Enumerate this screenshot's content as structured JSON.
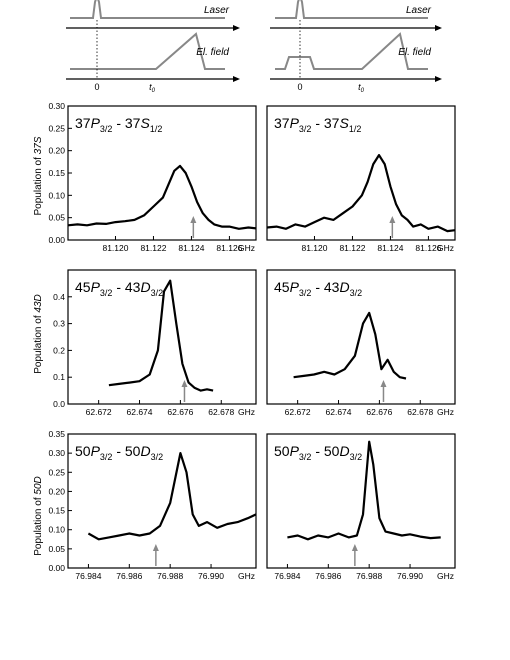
{
  "timing": {
    "left": {
      "laser_label": "Laser",
      "field_label": "El. field",
      "zero_label": "0",
      "t0_label": "t",
      "t0_sub": "0"
    },
    "right": {
      "laser_label": "Laser",
      "field_label": "El. field",
      "zero_label": "0",
      "t0_label": "t",
      "t0_sub": "0"
    }
  },
  "ghz_unit": "GHz",
  "rows": [
    {
      "ylabel_pre": "Population of ",
      "ylabel_state": "37S",
      "title": {
        "n1": "37",
        "L1": "P",
        "j1": "3/2",
        "dash": " - ",
        "n2": "37",
        "L2": "S",
        "j2": "1/2"
      }
    },
    {
      "ylabel_pre": "Population of ",
      "ylabel_state": "43D",
      "title": {
        "n1": "45",
        "L1": "P",
        "j1": "3/2",
        "dash": " - ",
        "n2": "43",
        "L2": "D",
        "j2": "3/2"
      }
    },
    {
      "ylabel_pre": "Population of ",
      "ylabel_state": "50D",
      "title": {
        "n1": "50",
        "L1": "P",
        "j1": "3/2",
        "dash": " - ",
        "n2": "50",
        "L2": "D",
        "j2": "3/2"
      }
    }
  ],
  "chart_data": [
    {
      "type": "line",
      "panel": "row1-left",
      "xlim": [
        81.1175,
        81.1274
      ],
      "ylim": [
        0,
        0.3
      ],
      "xticks": [
        81.12,
        81.122,
        81.124,
        81.126
      ],
      "xtick_labels": [
        "81.120",
        "81.122",
        "81.124",
        "81.126"
      ],
      "yticks": [
        0.0,
        0.05,
        0.1,
        0.15,
        0.2,
        0.25,
        0.3
      ],
      "ytick_labels": [
        "0.00",
        "0.05",
        "0.10",
        "0.15",
        "0.20",
        "0.25",
        "0.30"
      ],
      "arrow_x": 81.1241,
      "x": [
        81.1175,
        81.118,
        81.1185,
        81.119,
        81.1195,
        81.12,
        81.1205,
        81.121,
        81.1215,
        81.122,
        81.1225,
        81.1228,
        81.1231,
        81.1234,
        81.1237,
        81.124,
        81.1243,
        81.1246,
        81.1249,
        81.1252,
        81.1256,
        81.126,
        81.1265,
        81.127,
        81.1274
      ],
      "y": [
        0.033,
        0.035,
        0.033,
        0.037,
        0.036,
        0.04,
        0.042,
        0.045,
        0.055,
        0.075,
        0.095,
        0.125,
        0.155,
        0.166,
        0.15,
        0.12,
        0.085,
        0.06,
        0.045,
        0.035,
        0.03,
        0.03,
        0.025,
        0.028,
        0.026
      ]
    },
    {
      "type": "line",
      "panel": "row1-right",
      "xlim": [
        81.1175,
        81.1274
      ],
      "ylim": [
        0,
        0.3
      ],
      "xticks": [
        81.12,
        81.122,
        81.124,
        81.126
      ],
      "xtick_labels": [
        "81.120",
        "81.122",
        "81.124",
        "81.126"
      ],
      "arrow_x": 81.1241,
      "x": [
        81.1175,
        81.118,
        81.1185,
        81.119,
        81.1195,
        81.12,
        81.1205,
        81.121,
        81.1215,
        81.122,
        81.1225,
        81.1228,
        81.1231,
        81.1234,
        81.1237,
        81.124,
        81.1243,
        81.1246,
        81.1249,
        81.1252,
        81.1256,
        81.126,
        81.1265,
        81.127,
        81.1274
      ],
      "y": [
        0.028,
        0.03,
        0.025,
        0.035,
        0.03,
        0.04,
        0.05,
        0.045,
        0.06,
        0.075,
        0.1,
        0.13,
        0.17,
        0.19,
        0.17,
        0.12,
        0.08,
        0.055,
        0.045,
        0.03,
        0.035,
        0.025,
        0.03,
        0.02,
        0.022
      ]
    },
    {
      "type": "line",
      "panel": "row2-left",
      "xlim": [
        62.6705,
        62.6797
      ],
      "ylim": [
        0,
        0.5
      ],
      "xticks": [
        62.672,
        62.674,
        62.676,
        62.678
      ],
      "xtick_labels": [
        "62.672",
        "62.674",
        "62.676",
        "62.678"
      ],
      "yticks": [
        0.0,
        0.1,
        0.2,
        0.3,
        0.4
      ],
      "ytick_labels": [
        "0.0",
        "0.1",
        "0.2",
        "0.3",
        "0.4"
      ],
      "arrow_x": 62.6762,
      "x": [
        62.6725,
        62.673,
        62.6735,
        62.674,
        62.6745,
        62.6749,
        62.6752,
        62.6755,
        62.6758,
        62.6761,
        62.6764,
        62.6767,
        62.677,
        62.6773,
        62.6776
      ],
      "y": [
        0.07,
        0.075,
        0.08,
        0.085,
        0.11,
        0.2,
        0.42,
        0.46,
        0.3,
        0.15,
        0.08,
        0.06,
        0.05,
        0.055,
        0.05
      ]
    },
    {
      "type": "line",
      "panel": "row2-right",
      "xlim": [
        62.6705,
        62.6797
      ],
      "ylim": [
        0,
        0.5
      ],
      "xticks": [
        62.672,
        62.674,
        62.676,
        62.678
      ],
      "xtick_labels": [
        "62.672",
        "62.674",
        "62.676",
        "62.678"
      ],
      "arrow_x": 62.6762,
      "x": [
        62.6718,
        62.6723,
        62.6728,
        62.6733,
        62.6738,
        62.6743,
        62.6748,
        62.6752,
        62.6755,
        62.6758,
        62.6761,
        62.6764,
        62.6767,
        62.677,
        62.6773
      ],
      "y": [
        0.1,
        0.105,
        0.11,
        0.12,
        0.11,
        0.13,
        0.18,
        0.3,
        0.34,
        0.26,
        0.13,
        0.165,
        0.12,
        0.1,
        0.095
      ]
    },
    {
      "type": "line",
      "panel": "row3-left",
      "xlim": [
        76.983,
        76.9922
      ],
      "ylim": [
        0,
        0.35
      ],
      "xticks": [
        76.984,
        76.986,
        76.988,
        76.99
      ],
      "xtick_labels": [
        "76.984",
        "76.986",
        "76.988",
        "76.990"
      ],
      "yticks": [
        0.0,
        0.05,
        0.1,
        0.15,
        0.2,
        0.25,
        0.3,
        0.35
      ],
      "ytick_labels": [
        "0.00",
        "0.05",
        "0.10",
        "0.15",
        "0.20",
        "0.25",
        "0.30",
        "0.35"
      ],
      "arrow_x": 76.9873,
      "x": [
        76.984,
        76.9845,
        76.985,
        76.9855,
        76.986,
        76.9865,
        76.987,
        76.9875,
        76.988,
        76.9885,
        76.9888,
        76.9891,
        76.9894,
        76.9898,
        76.9903,
        76.9908,
        76.9913,
        76.9918,
        76.9922
      ],
      "y": [
        0.09,
        0.075,
        0.08,
        0.085,
        0.09,
        0.085,
        0.09,
        0.11,
        0.17,
        0.3,
        0.25,
        0.14,
        0.11,
        0.12,
        0.105,
        0.115,
        0.12,
        0.13,
        0.14
      ]
    },
    {
      "type": "line",
      "panel": "row3-right",
      "xlim": [
        76.983,
        76.9922
      ],
      "ylim": [
        0,
        0.35
      ],
      "xticks": [
        76.984,
        76.986,
        76.988,
        76.99
      ],
      "xtick_labels": [
        "76.984",
        "76.986",
        "76.988",
        "76.990"
      ],
      "arrow_x": 76.9873,
      "x": [
        76.984,
        76.9845,
        76.985,
        76.9855,
        76.986,
        76.9865,
        76.987,
        76.9874,
        76.9877,
        76.988,
        76.9882,
        76.9885,
        76.9888,
        76.9892,
        76.9896,
        76.99,
        76.9905,
        76.991,
        76.9915
      ],
      "y": [
        0.08,
        0.085,
        0.075,
        0.085,
        0.08,
        0.09,
        0.08,
        0.085,
        0.14,
        0.33,
        0.27,
        0.13,
        0.095,
        0.09,
        0.085,
        0.088,
        0.082,
        0.078,
        0.08
      ]
    }
  ]
}
